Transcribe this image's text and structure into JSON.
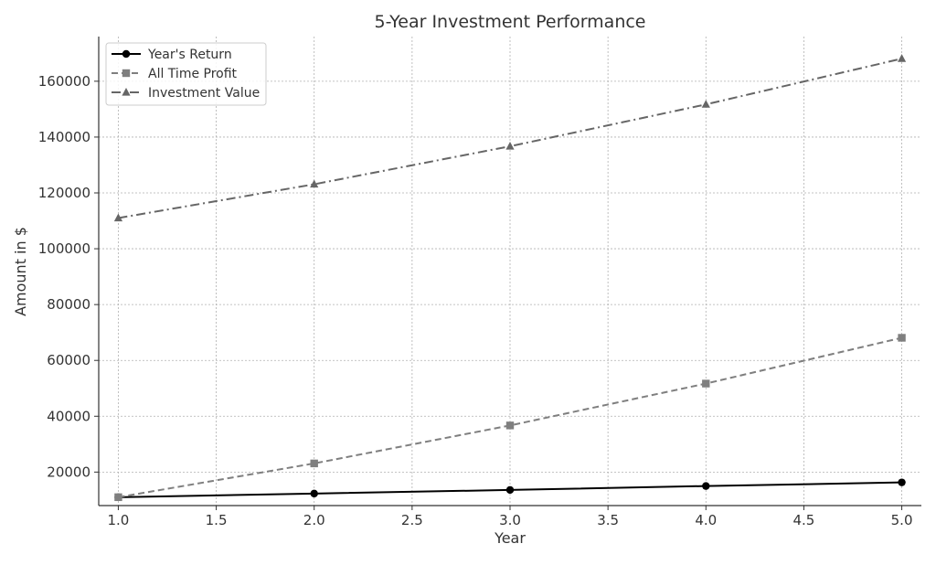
{
  "chart_data": {
    "type": "line",
    "title": "5-Year Investment Performance",
    "xlabel": "Year",
    "ylabel": "Amount in $",
    "xlim": [
      0.9,
      5.1
    ],
    "ylim": [
      8000,
      176000
    ],
    "x_ticks": [
      1.0,
      1.5,
      2.0,
      2.5,
      3.0,
      3.5,
      4.0,
      4.5,
      5.0
    ],
    "x_tick_labels": [
      "1.0",
      "1.5",
      "2.0",
      "2.5",
      "3.0",
      "3.5",
      "4.0",
      "4.5",
      "5.0"
    ],
    "y_ticks": [
      20000,
      40000,
      60000,
      80000,
      100000,
      120000,
      140000,
      160000
    ],
    "y_tick_labels": [
      "20000",
      "40000",
      "60000",
      "80000",
      "100000",
      "120000",
      "140000",
      "160000"
    ],
    "grid": true,
    "legend_position": "top-left",
    "x": [
      1,
      2,
      3,
      4,
      5
    ],
    "series": [
      {
        "name": "Year's Return",
        "values": [
          11000,
          12300,
          13600,
          15000,
          16300
        ],
        "color": "#000000",
        "line_style": "solid",
        "marker": "circle"
      },
      {
        "name": "All Time Profit",
        "values": [
          11000,
          23100,
          36700,
          51700,
          68100
        ],
        "color": "#7f7f7f",
        "line_style": "dashed",
        "marker": "square"
      },
      {
        "name": "Investment Value",
        "values": [
          111000,
          123100,
          136700,
          151700,
          168100
        ],
        "color": "#666666",
        "line_style": "dashdot",
        "marker": "triangle"
      }
    ]
  }
}
